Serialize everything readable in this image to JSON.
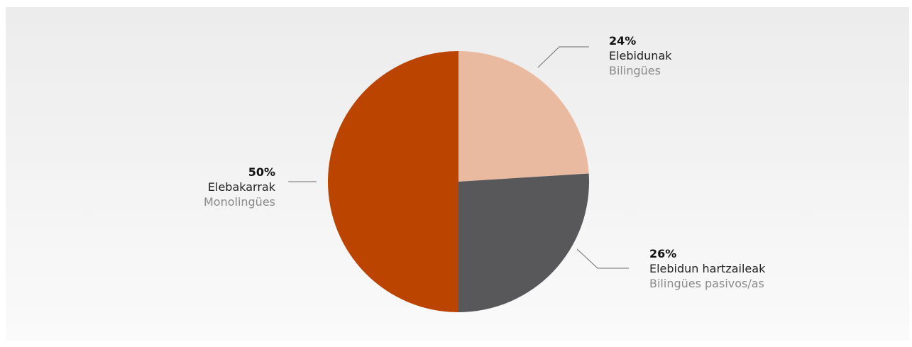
{
  "chart_data": {
    "type": "pie",
    "slices": [
      {
        "percent_label": "24%",
        "label": "Elebidunak",
        "sublabel": "Bilingües",
        "value": 24,
        "color": "#e9b9a0"
      },
      {
        "percent_label": "26%",
        "label": "Elebidun hartzaileak",
        "sublabel": "Bilingües pasivos/as",
        "value": 26,
        "color": "#58575a"
      },
      {
        "percent_label": "50%",
        "label": "Elebakarrak",
        "sublabel": "Monolingües",
        "value": 50,
        "color": "#bb4500"
      }
    ],
    "start_angle_deg": 0,
    "direction": "clockwise"
  }
}
